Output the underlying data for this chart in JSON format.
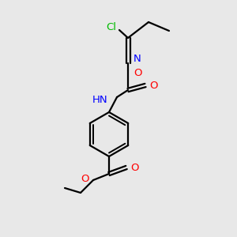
{
  "background_color": "#e8e8e8",
  "bond_color": "#000000",
  "cl_color": "#00bb00",
  "n_color": "#0000ff",
  "o_color": "#ff0000",
  "figsize": [
    3.0,
    3.0
  ],
  "dpi": 100,
  "xlim": [
    0,
    300
  ],
  "ylim": [
    0,
    300
  ]
}
